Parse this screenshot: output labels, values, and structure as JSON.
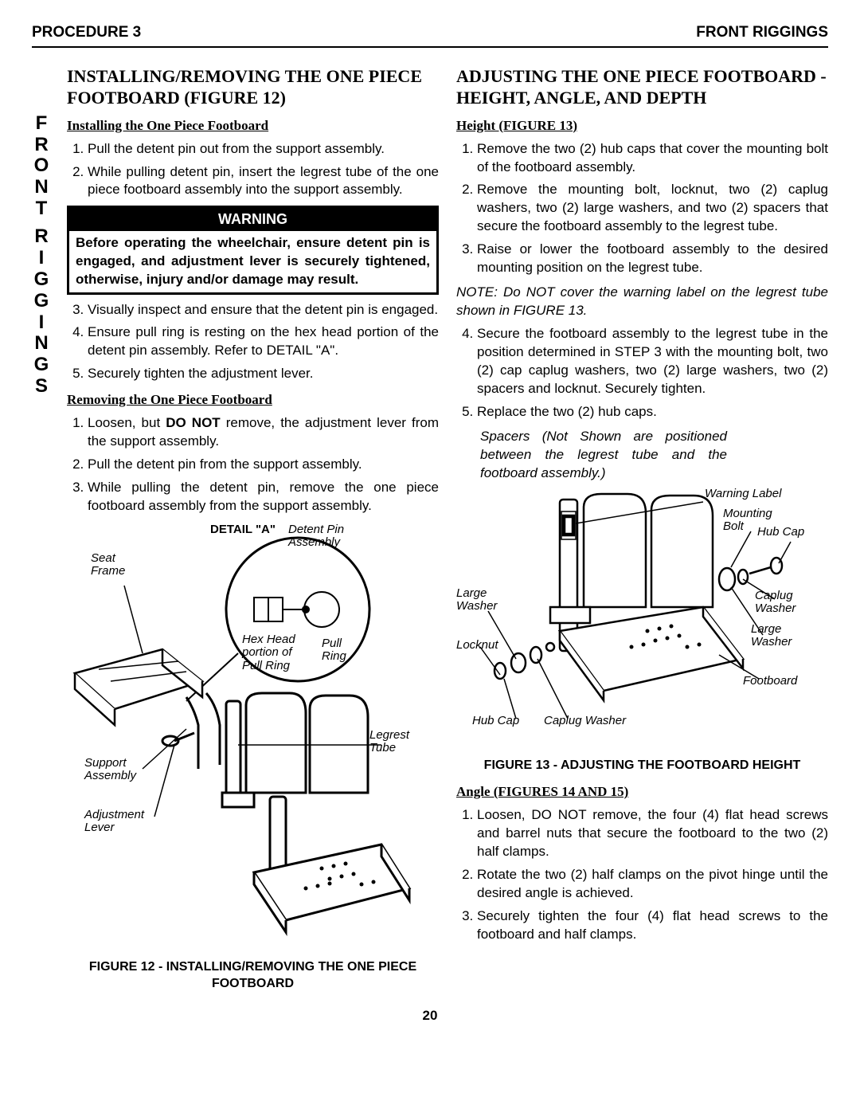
{
  "header": {
    "left": "PROCEDURE 3",
    "right": "FRONT RIGGINGS"
  },
  "sideLetters": [
    "F",
    "R",
    "O",
    "N",
    "T",
    "",
    "R",
    "I",
    "G",
    "G",
    "I",
    "N",
    "G",
    "S"
  ],
  "left": {
    "title": "INSTALLING/REMOVING THE ONE PIECE FOOTBOARD (FIGURE 12)",
    "installHead": "Installing the One Piece Footboard",
    "install1": "Pull the detent pin out from the support assembly.",
    "install2": "While pulling detent pin, insert the legrest tube of the one piece footboard assembly into the support assembly.",
    "warnHead": "WARNING",
    "warnBody": "Before operating the wheelchair, ensure detent pin is engaged, and adjustment lever is securely tightened, otherwise, injury and/or damage may result.",
    "install3": "Visually inspect and ensure that the detent pin is engaged.",
    "install4": "Ensure pull ring is resting on the hex head portion of the detent pin assembly. Refer to  DETAIL \"A\".",
    "install5": "Securely tighten the adjustment lever.",
    "removeHead": "Removing the One Piece Footboard",
    "remove1": "Loosen, but DO NOT remove, the adjustment lever from the support assembly.",
    "remove2": "Pull the detent pin from the support assembly.",
    "remove3": "While pulling the detent pin, remove the one piece footboard assembly from the support assembly.",
    "fig12": {
      "detailA": "DETAIL \"A\"",
      "detentPin": "Detent Pin Assembly",
      "seatFrame": "Seat Frame",
      "hexHead": "Hex Head portion of Pull Ring",
      "pullRing": "Pull Ring",
      "legrestTube": "Legrest Tube",
      "supportAssy": "Support Assembly",
      "adjLever": "Adjustment Lever",
      "caption": "FIGURE 12 - INSTALLING/REMOVING THE ONE PIECE FOOTBOARD"
    }
  },
  "right": {
    "title": "ADJUSTING THE ONE PIECE FOOTBOARD - HEIGHT, ANGLE, AND DEPTH",
    "heightHead": "Height (FIGURE 13)",
    "h1": "Remove the two (2) hub caps that cover the mounting bolt of the footboard assembly.",
    "h2": "Remove the mounting bolt, locknut, two (2) caplug washers, two (2) large washers, and two (2) spacers that secure the footboard assembly to the legrest tube.",
    "h3": "Raise or lower the footboard assembly to the desired mounting position on the legrest tube.",
    "note1": "NOTE: Do NOT cover the warning label on the legrest tube shown in FIGURE 13.",
    "h4": "Secure the footboard assembly to the legrest tube in the position determined in STEP 3 with the mounting bolt, two (2) cap caplug washers, two (2) large washers, two (2) spacers and locknut. Securely tighten.",
    "h5": "Replace the two (2) hub caps.",
    "note2": "Spacers (Not Shown are positioned between the legrest tube and the footboard assembly.)",
    "fig13": {
      "warningLabel": "Warning Label",
      "mountingBolt": "Mounting Bolt",
      "hubCap1": "Hub Cap",
      "largeWasher1": "Large Washer",
      "caplugWasher1": "Caplug Washer",
      "locknut": "Locknut",
      "largeWasher2": "Large Washer",
      "footboard": "Footboard",
      "hubCap2": "Hub Cap",
      "caplugWasher2": "Caplug Washer",
      "caption": "FIGURE 13 - ADJUSTING THE FOOTBOARD HEIGHT"
    },
    "angleHead": "Angle (FIGURES 14 AND 15)",
    "a1": "Loosen, DO NOT remove, the four (4) flat head screws and barrel nuts that secure the footboard to the two (2) half clamps.",
    "a2": "Rotate the two (2) half clamps on the pivot hinge until the desired angle is achieved.",
    "a3": "Securely tighten the four (4) flat head screws to the footboard and half clamps."
  },
  "pageNum": "20"
}
